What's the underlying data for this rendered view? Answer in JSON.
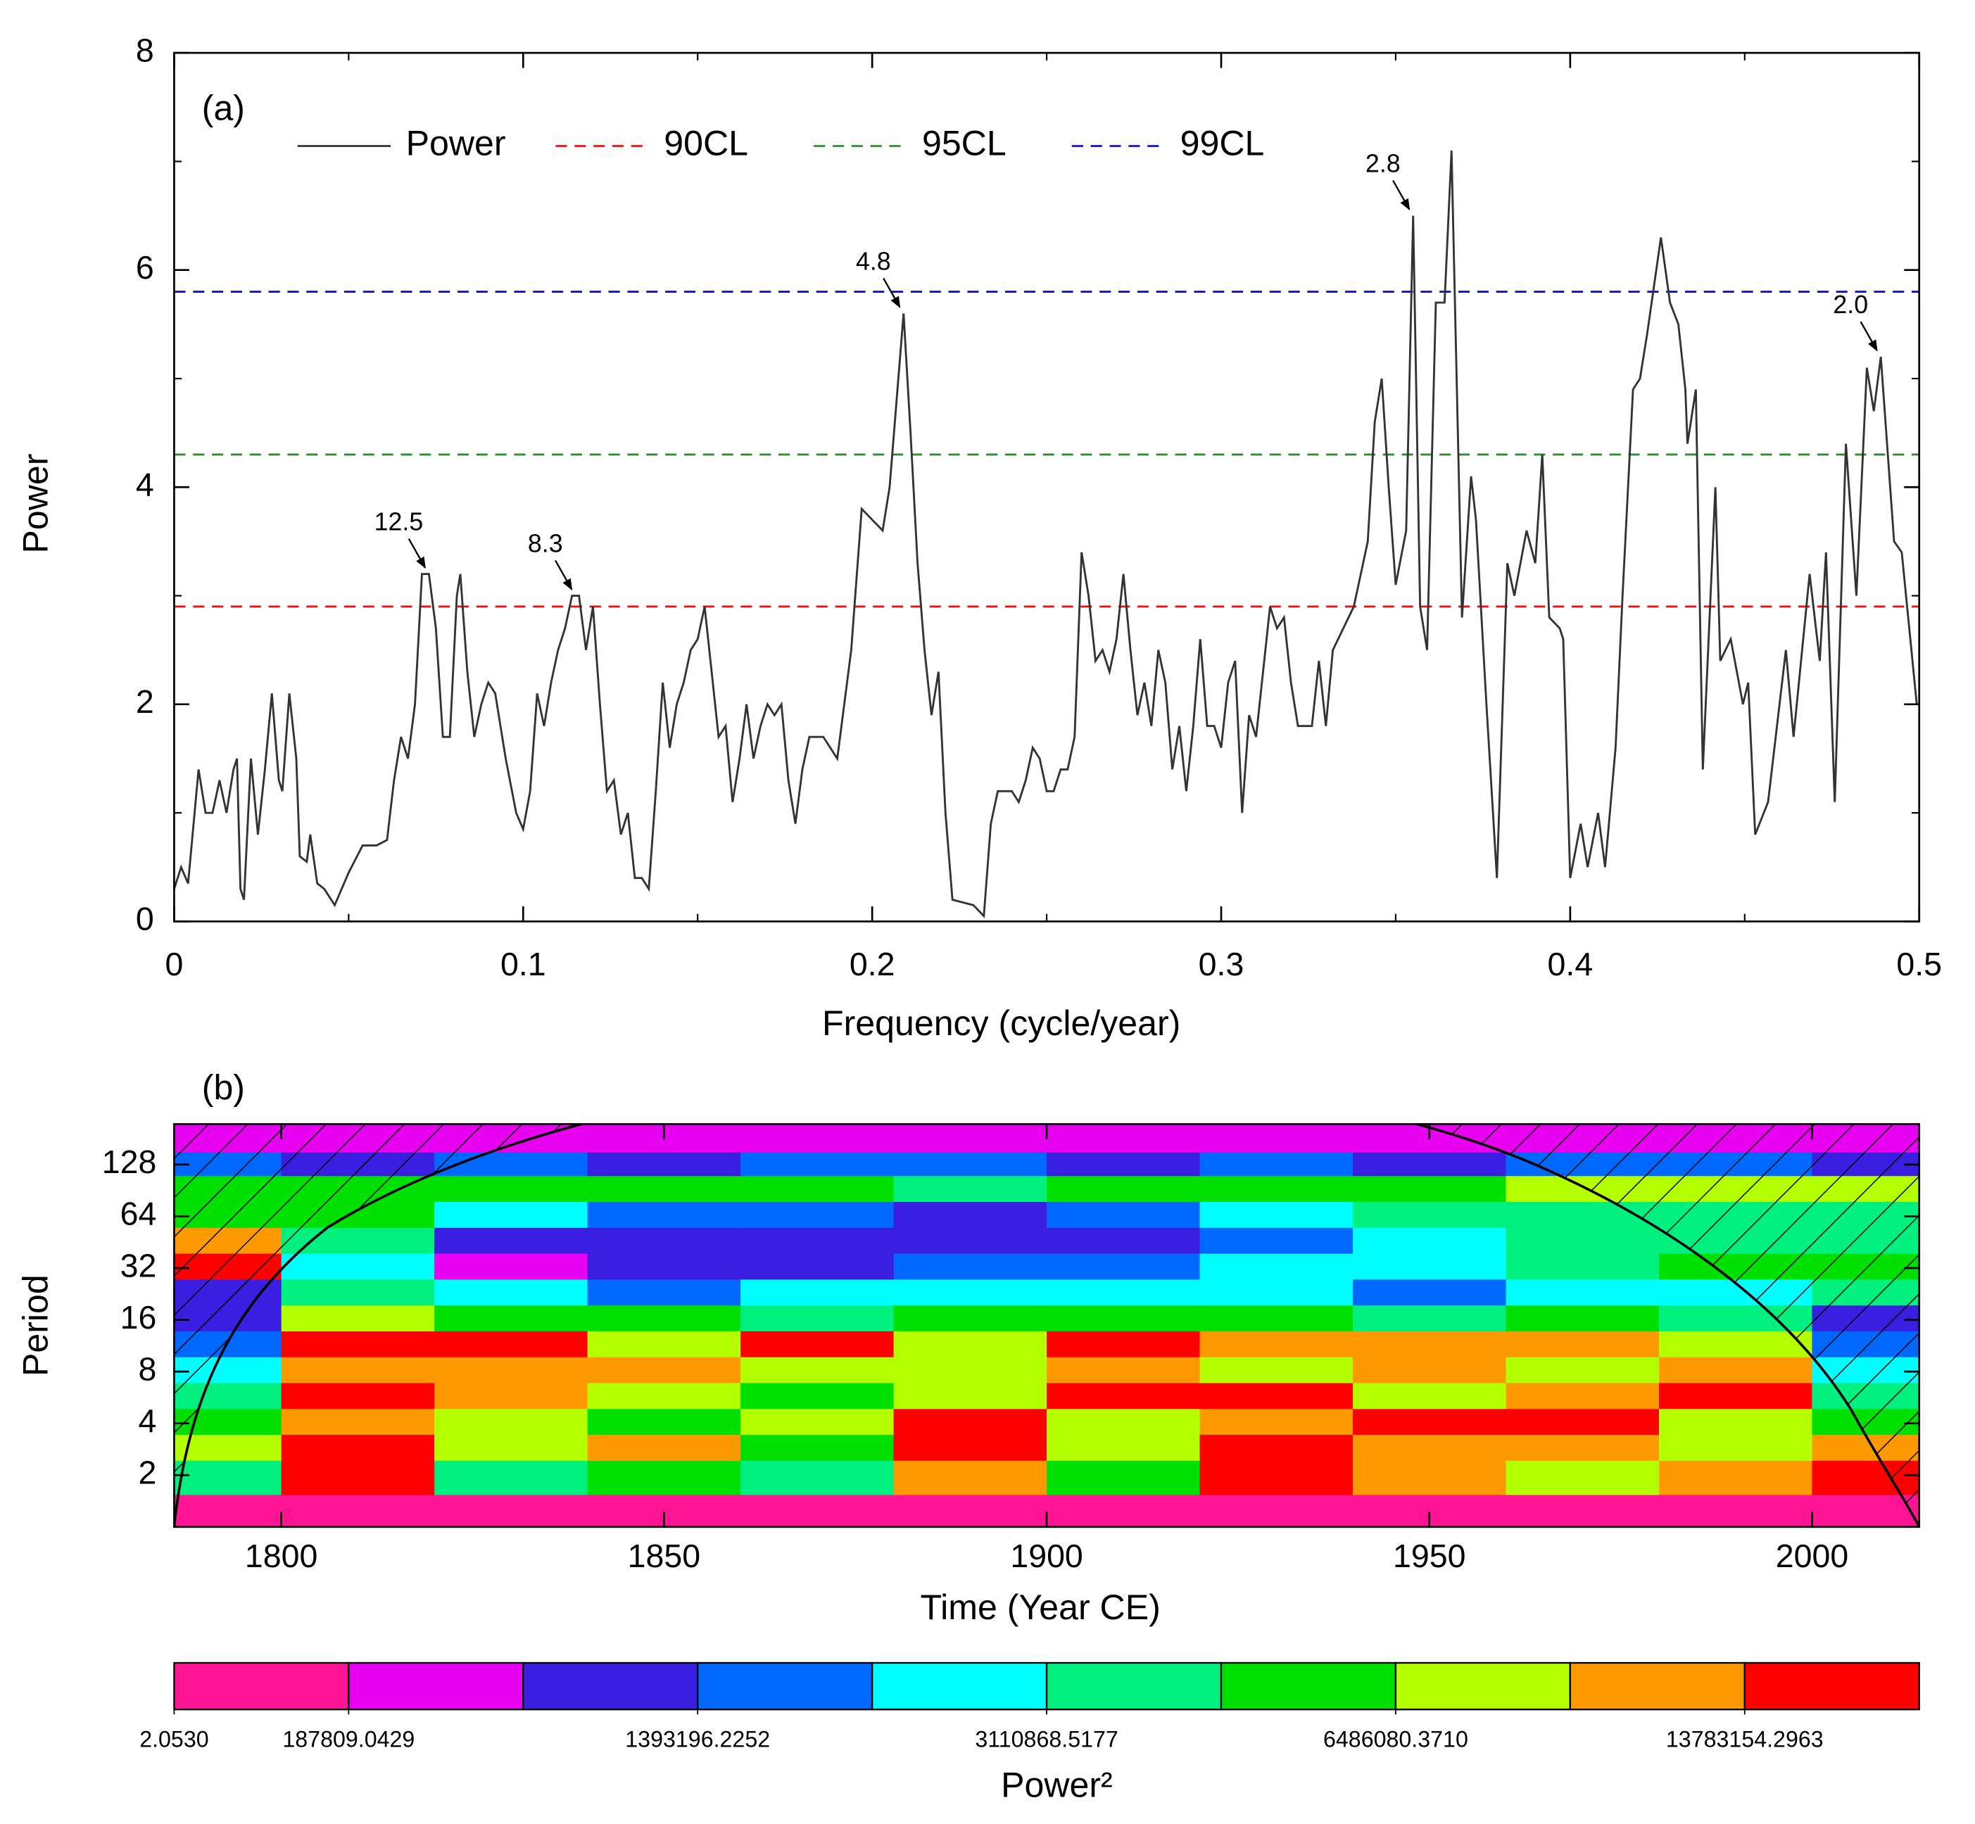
{
  "chart_data": [
    {
      "type": "line",
      "panel_label": "(a)",
      "xlabel": "Frequency (cycle/year)",
      "ylabel": "Power",
      "xlim": [
        0,
        0.5
      ],
      "ylim": [
        0,
        8
      ],
      "xticks": [
        0,
        0.1,
        0.2,
        0.3,
        0.4,
        0.5
      ],
      "xminorticks": [
        0.05,
        0.15,
        0.25,
        0.35,
        0.45
      ],
      "yticks": [
        0,
        2,
        4,
        6,
        8
      ],
      "yminorticks": [
        1,
        3,
        5,
        7
      ],
      "x": [
        0,
        0.002,
        0.004,
        0.007,
        0.009,
        0.011,
        0.013,
        0.015,
        0.017,
        0.018,
        0.019,
        0.02,
        0.022,
        0.024,
        0.026,
        0.028,
        0.03,
        0.031,
        0.033,
        0.035,
        0.036,
        0.038,
        0.039,
        0.041,
        0.043,
        0.046,
        0.05,
        0.054,
        0.058,
        0.061,
        0.063,
        0.065,
        0.067,
        0.069,
        0.071,
        0.073,
        0.075,
        0.077,
        0.079,
        0.081,
        0.082,
        0.084,
        0.086,
        0.088,
        0.09,
        0.092,
        0.095,
        0.098,
        0.1,
        0.102,
        0.104,
        0.106,
        0.108,
        0.11,
        0.112,
        0.114,
        0.116,
        0.118,
        0.12,
        0.122,
        0.124,
        0.126,
        0.128,
        0.13,
        0.132,
        0.134,
        0.136,
        0.138,
        0.14,
        0.142,
        0.144,
        0.146,
        0.148,
        0.15,
        0.152,
        0.154,
        0.156,
        0.158,
        0.16,
        0.162,
        0.164,
        0.166,
        0.168,
        0.17,
        0.172,
        0.174,
        0.176,
        0.178,
        0.18,
        0.182,
        0.186,
        0.19,
        0.194,
        0.197,
        0.2,
        0.203,
        0.205,
        0.207,
        0.209,
        0.211,
        0.213,
        0.215,
        0.217,
        0.219,
        0.221,
        0.223,
        0.229,
        0.232,
        0.234,
        0.236,
        0.24,
        0.242,
        0.244,
        0.246,
        0.248,
        0.25,
        0.252,
        0.254,
        0.256,
        0.258,
        0.26,
        0.262,
        0.264,
        0.266,
        0.268,
        0.27,
        0.272,
        0.274,
        0.276,
        0.278,
        0.28,
        0.282,
        0.284,
        0.286,
        0.288,
        0.29,
        0.292,
        0.294,
        0.296,
        0.298,
        0.3,
        0.302,
        0.304,
        0.306,
        0.308,
        0.31,
        0.312,
        0.314,
        0.316,
        0.318,
        0.32,
        0.322,
        0.326,
        0.328,
        0.33,
        0.332,
        0.335,
        0.338,
        0.342,
        0.344,
        0.346,
        0.348,
        0.35,
        0.353,
        0.355,
        0.357,
        0.359,
        0.3615,
        0.364,
        0.366,
        0.369,
        0.3716,
        0.373,
        0.376,
        0.379,
        0.382,
        0.384,
        0.3875,
        0.39,
        0.392,
        0.394,
        0.397,
        0.398,
        0.4,
        0.403,
        0.405,
        0.408,
        0.41,
        0.413,
        0.415,
        0.418,
        0.42,
        0.422,
        0.426,
        0.4286,
        0.431,
        0.433,
        0.4336,
        0.436,
        0.438,
        0.4416,
        0.443,
        0.446,
        0.4495,
        0.451,
        0.453,
        0.4567,
        0.4618,
        0.464,
        0.4686,
        0.4715,
        0.4733,
        0.4758,
        0.479,
        0.482,
        0.485,
        0.487,
        0.489,
        0.4928,
        0.495,
        0.4993
      ],
      "series": [
        {
          "name": "Power",
          "color": "#333333",
          "values": [
            0.3,
            0.5,
            0.35,
            1.4,
            1.0,
            1.0,
            1.3,
            1.0,
            1.4,
            1.5,
            0.3,
            0.2,
            1.5,
            0.8,
            1.4,
            2.1,
            1.3,
            1.2,
            2.1,
            1.5,
            0.6,
            0.55,
            0.8,
            0.35,
            0.3,
            0.15,
            0.45,
            0.7,
            0.7,
            0.75,
            1.3,
            1.7,
            1.5,
            2.0,
            3.2,
            3.2,
            2.7,
            1.7,
            1.7,
            3.0,
            3.2,
            2.3,
            1.7,
            2.0,
            2.2,
            2.1,
            1.5,
            1.0,
            0.85,
            1.2,
            2.1,
            1.8,
            2.2,
            2.5,
            2.7,
            3.0,
            3.0,
            2.5,
            2.9,
            2.0,
            1.2,
            1.3,
            0.8,
            1.0,
            0.4,
            0.4,
            0.3,
            1.2,
            2.2,
            1.6,
            2.0,
            2.2,
            2.5,
            2.6,
            2.9,
            2.3,
            1.7,
            1.8,
            1.1,
            1.5,
            2.0,
            1.5,
            1.8,
            2.0,
            1.9,
            2.0,
            1.3,
            0.9,
            1.4,
            1.7,
            1.7,
            1.5,
            2.5,
            3.8,
            3.7,
            3.6,
            4.0,
            4.8,
            5.6,
            4.5,
            3.3,
            2.5,
            1.9,
            2.3,
            1.0,
            0.2,
            0.15,
            0.05,
            0.9,
            1.2,
            1.2,
            1.1,
            1.3,
            1.6,
            1.5,
            1.2,
            1.2,
            1.4,
            1.4,
            1.7,
            3.4,
            3.0,
            2.4,
            2.5,
            2.3,
            2.6,
            3.2,
            2.5,
            1.9,
            2.2,
            1.8,
            2.5,
            2.2,
            1.4,
            1.8,
            1.2,
            1.8,
            2.6,
            1.8,
            1.8,
            1.6,
            2.2,
            2.4,
            1.0,
            1.9,
            1.7,
            2.3,
            2.9,
            2.7,
            2.8,
            2.2,
            1.8,
            1.8,
            2.4,
            1.8,
            2.5,
            2.7,
            2.9,
            3.5,
            4.6,
            5.0,
            4.0,
            3.1,
            3.6,
            6.5,
            2.9,
            2.5,
            5.7,
            5.7,
            7.1,
            2.8,
            4.1,
            3.7,
            2.0,
            0.4,
            3.3,
            3.0,
            3.6,
            3.3,
            4.3,
            2.8,
            2.7,
            2.6,
            0.4,
            0.9,
            0.5,
            1.0,
            0.5,
            1.6,
            3.0,
            4.9,
            5.0,
            5.4,
            6.3,
            5.7,
            5.5,
            4.9,
            4.4,
            4.9,
            1.4,
            4.0,
            2.4,
            2.6,
            2.0,
            2.2,
            0.8,
            1.1,
            2.5,
            1.7,
            3.2,
            2.4,
            3.4,
            1.1,
            4.4,
            3.0,
            5.1,
            4.7,
            5.2,
            3.5,
            3.4,
            2.0
          ]
        }
      ],
      "thresholds": [
        {
          "name": "90CL",
          "color": "#ee1111",
          "value": 2.9
        },
        {
          "name": "95CL",
          "color": "#2e8b2e",
          "value": 4.3
        },
        {
          "name": "99CL",
          "color": "#1111cc",
          "value": 5.8
        }
      ],
      "annotations": [
        {
          "text": "12.5",
          "x": 0.073,
          "y": 3.2
        },
        {
          "text": "8.3",
          "x": 0.115,
          "y": 3.0
        },
        {
          "text": "4.8",
          "x": 0.209,
          "y": 5.6
        },
        {
          "text": "2.8",
          "x": 0.355,
          "y": 6.5
        },
        {
          "text": "2.0",
          "x": 0.489,
          "y": 5.2
        }
      ],
      "legend": "top"
    },
    {
      "type": "heatmap",
      "panel_label": "(b)",
      "xlabel": "Time (Year CE)",
      "ylabel": "Period",
      "xlim": [
        1786,
        2014
      ],
      "xticks": [
        1800,
        1850,
        1900,
        1950,
        2000
      ],
      "ylim": [
        1,
        220
      ],
      "log_base": 2,
      "yticks": [
        2,
        4,
        8,
        16,
        32,
        64,
        128
      ],
      "x": [
        1790,
        1810,
        1830,
        1850,
        1870,
        1890,
        1910,
        1930,
        1950,
        1970,
        1990,
        2010
      ],
      "y": [
        1.2,
        2,
        3,
        4,
        6,
        8,
        12,
        16,
        24,
        32,
        48,
        64,
        96,
        128,
        180
      ],
      "z": [
        [
          100000.0,
          100000.0,
          100000.0,
          100000.0,
          100000.0,
          100000.0,
          100000.0,
          100000.0,
          100000.0,
          100000.0,
          100000.0,
          100000.0
        ],
        [
          4000000.0,
          16000000.0,
          4000000.0,
          5500000.0,
          4000000.0,
          11000000.0,
          5500000.0,
          16000000.0,
          11000000.0,
          8000000.0,
          11000000.0,
          16000000.0
        ],
        [
          8000000.0,
          16000000.0,
          8000000.0,
          11000000.0,
          5500000.0,
          16000000.0,
          8000000.0,
          16000000.0,
          11000000.0,
          11000000.0,
          8000000.0,
          11000000.0
        ],
        [
          5500000.0,
          11000000.0,
          8000000.0,
          5500000.0,
          8000000.0,
          16000000.0,
          8000000.0,
          11000000.0,
          16000000.0,
          16000000.0,
          8000000.0,
          5500000.0
        ],
        [
          4000000.0,
          16000000.0,
          11000000.0,
          8000000.0,
          5500000.0,
          8000000.0,
          16000000.0,
          16000000.0,
          8000000.0,
          11000000.0,
          16000000.0,
          4000000.0
        ],
        [
          2600000.0,
          11000000.0,
          11000000.0,
          11000000.0,
          8000000.0,
          8000000.0,
          11000000.0,
          8000000.0,
          11000000.0,
          8000000.0,
          11000000.0,
          2600000.0
        ],
        [
          1800000.0,
          16000000.0,
          16000000.0,
          8000000.0,
          16000000.0,
          8000000.0,
          16000000.0,
          11000000.0,
          11000000.0,
          11000000.0,
          8000000.0,
          1800000.0
        ],
        [
          1000000.0,
          8000000.0,
          5500000.0,
          5500000.0,
          4000000.0,
          5500000.0,
          5500000.0,
          5500000.0,
          4000000.0,
          5500000.0,
          4000000.0,
          1000000.0
        ],
        [
          1000000.0,
          4000000.0,
          2600000.0,
          1800000.0,
          2600000.0,
          2600000.0,
          2600000.0,
          2600000.0,
          1800000.0,
          2600000.0,
          2600000.0,
          4000000.0
        ],
        [
          16000000.0,
          2600000.0,
          500000.0,
          1000000.0,
          1000000.0,
          1800000.0,
          1800000.0,
          2600000.0,
          2600000.0,
          4000000.0,
          5500000.0,
          5500000.0
        ],
        [
          11000000.0,
          4000000.0,
          1000000.0,
          1000000.0,
          1000000.0,
          1000000.0,
          1000000.0,
          1800000.0,
          2600000.0,
          4000000.0,
          4000000.0,
          4000000.0
        ],
        [
          5500000.0,
          5500000.0,
          2600000.0,
          1800000.0,
          1800000.0,
          1000000.0,
          1800000.0,
          2600000.0,
          4000000.0,
          4000000.0,
          4000000.0,
          4000000.0
        ],
        [
          5500000.0,
          5500000.0,
          5500000.0,
          5500000.0,
          5500000.0,
          4000000.0,
          5500000.0,
          5500000.0,
          5500000.0,
          8000000.0,
          8000000.0,
          8000000.0
        ],
        [
          1800000.0,
          1000000.0,
          1800000.0,
          1000000.0,
          1800000.0,
          1800000.0,
          1000000.0,
          1800000.0,
          1000000.0,
          1800000.0,
          1800000.0,
          1000000.0
        ],
        [
          500000.0,
          500000.0,
          500000.0,
          500000.0,
          500000.0,
          500000.0,
          500000.0,
          500000.0,
          500000.0,
          500000.0,
          500000.0,
          500000.0
        ]
      ],
      "colorbar": {
        "label": "Power²",
        "levels": [
          2.053,
          187809.0429,
          700000,
          1393196.2252,
          2200000,
          3110868.5177,
          4700000,
          6486080.371,
          9500000,
          13783154.2963,
          20000000
        ],
        "colors": [
          "#ff1493",
          "#e800f0",
          "#3a1fe0",
          "#0068ff",
          "#00ffff",
          "#00f080",
          "#00e000",
          "#b4ff00",
          "#ff9900",
          "#ff0000"
        ],
        "ticks": [
          {
            "value": 2.053,
            "label": "2.0530"
          },
          {
            "value": 187809.0429,
            "label": "187809.0429"
          },
          {
            "value": 1393196.2252,
            "label": "1393196.2252"
          },
          {
            "value": 3110868.5177,
            "label": "3110868.5177"
          },
          {
            "value": 6486080.371,
            "label": "6486080.3710"
          },
          {
            "value": 13783154.2963,
            "label": "13783154.2963"
          }
        ]
      }
    }
  ]
}
